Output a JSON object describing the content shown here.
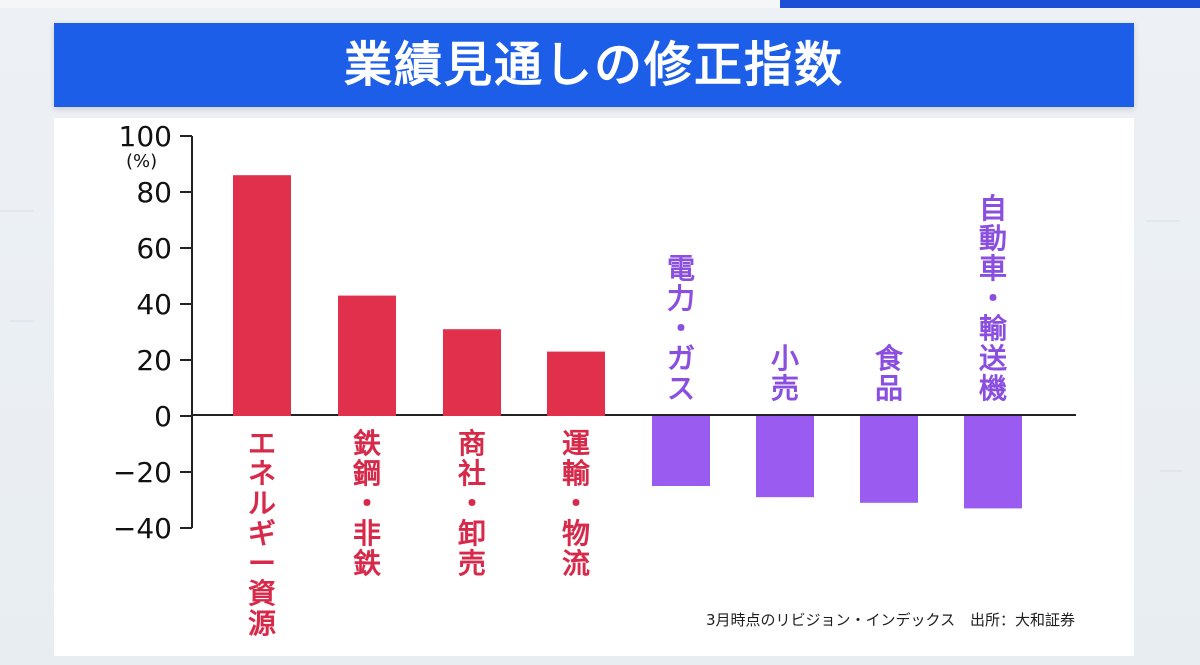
{
  "title": "業績見通しの修正指数",
  "footer": {
    "note": "3月時点のリビジョン・インデックス",
    "source": "出所：大和証券"
  },
  "colors": {
    "title_background": "#1D5EE8",
    "positive_bar": "#E0304C",
    "negative_bar": "#9A5CF0",
    "positive_label": "#D72A4A",
    "negative_label": "#8B4FE0",
    "axis": "#222222"
  },
  "chart_data": {
    "type": "bar",
    "ylabel": "(%)",
    "ylim": [
      -40,
      100
    ],
    "yticks": [
      100,
      80,
      60,
      40,
      20,
      0,
      -20,
      -40
    ],
    "categories": [
      "エネルギー資源",
      "鉄鋼・非鉄",
      "商社・卸売",
      "運輸・物流",
      "電力・ガス",
      "小売",
      "食品",
      "自動車・輸送機"
    ],
    "values": [
      86,
      43,
      31,
      23,
      -25,
      -29,
      -31,
      -33
    ],
    "grid": false,
    "legend": "none"
  }
}
